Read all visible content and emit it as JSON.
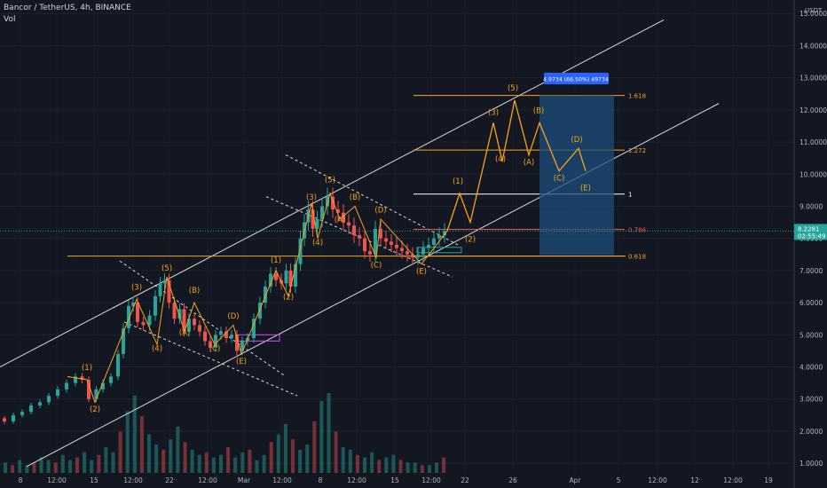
{
  "header": {
    "symbol_line": "Bancor / TetherUS, 4h, BINANCE",
    "volume_label": "Vol"
  },
  "currency": "USDT",
  "colors": {
    "background": "#131722",
    "up": "#26a69a",
    "down": "#ef5350",
    "wave": "#f7a21b",
    "channel": "#d9d9d9",
    "box_fill": "#1e4e7c",
    "box_label": "#2962ff",
    "price_tag": "#26a69a"
  },
  "chart_data": {
    "type": "candlestick",
    "y_axis": {
      "min": 0.7,
      "max": 15.2,
      "ticks": [
        1.0,
        2.0,
        3.0,
        4.0,
        5.0,
        6.0,
        7.0,
        8.0,
        9.0,
        10.0,
        11.0,
        12.0,
        13.0,
        14.0,
        15.0
      ],
      "tick_labels": [
        "1.0000",
        "2.0000",
        "3.0000",
        "4.0000",
        "5.0000",
        "6.0000",
        "7.0000",
        "8.0000",
        "9.0000",
        "10.0000",
        "11.0000",
        "12.0000",
        "13.0000",
        "14.0000",
        "15.0000"
      ]
    },
    "x_axis": {
      "labels": [
        "8",
        "12:00",
        "15",
        "12:00",
        "22",
        "12:00",
        "Mar",
        "12:00",
        "8",
        "12:00",
        "15",
        "12:00",
        "22",
        "26",
        "Apr",
        "5",
        "12:00",
        "12",
        "12:00",
        "19"
      ]
    },
    "current_price": {
      "value": 8.2281,
      "label": "8.2281",
      "countdown": "02:55:49"
    },
    "price_path": [
      [
        0,
        2.4
      ],
      [
        10,
        2.3
      ],
      [
        20,
        2.5
      ],
      [
        30,
        2.6
      ],
      [
        40,
        2.8
      ],
      [
        50,
        2.9
      ],
      [
        60,
        3.1
      ],
      [
        70,
        3.3
      ],
      [
        80,
        3.5
      ],
      [
        90,
        3.7
      ],
      [
        95,
        3.6
      ],
      [
        105,
        3.0
      ],
      [
        112,
        3.3
      ],
      [
        120,
        3.5
      ],
      [
        130,
        3.7
      ],
      [
        136,
        4.4
      ],
      [
        142,
        5.2
      ],
      [
        148,
        5.9
      ],
      [
        152,
        6.0
      ],
      [
        158,
        5.4
      ],
      [
        165,
        5.3
      ],
      [
        172,
        5.6
      ],
      [
        178,
        6.2
      ],
      [
        183,
        6.6
      ],
      [
        188,
        6.7
      ],
      [
        193,
        6.0
      ],
      [
        200,
        5.5
      ],
      [
        205,
        5.8
      ],
      [
        210,
        5.1
      ],
      [
        216,
        5.5
      ],
      [
        222,
        5.3
      ],
      [
        228,
        5.1
      ],
      [
        234,
        4.8
      ],
      [
        240,
        4.6
      ],
      [
        246,
        5.0
      ],
      [
        252,
        5.1
      ],
      [
        258,
        4.9
      ],
      [
        264,
        5.0
      ],
      [
        270,
        4.5
      ],
      [
        276,
        4.8
      ],
      [
        282,
        4.9
      ],
      [
        290,
        5.5
      ],
      [
        296,
        6.0
      ],
      [
        302,
        6.5
      ],
      [
        308,
        6.9
      ],
      [
        314,
        6.7
      ],
      [
        320,
        6.6
      ],
      [
        325,
        7.0
      ],
      [
        330,
        6.5
      ],
      [
        336,
        7.2
      ],
      [
        341,
        8.0
      ],
      [
        345,
        8.5
      ],
      [
        350,
        8.9
      ],
      [
        355,
        8.3
      ],
      [
        360,
        8.6
      ],
      [
        366,
        9.0
      ],
      [
        372,
        9.3
      ],
      [
        378,
        8.9
      ],
      [
        384,
        8.8
      ],
      [
        390,
        8.5
      ],
      [
        396,
        8.4
      ],
      [
        402,
        8.1
      ],
      [
        408,
        8.0
      ],
      [
        414,
        7.6
      ],
      [
        420,
        7.5
      ],
      [
        426,
        8.3
      ],
      [
        432,
        8.0
      ],
      [
        438,
        7.9
      ],
      [
        444,
        7.8
      ],
      [
        450,
        7.7
      ],
      [
        456,
        7.6
      ],
      [
        462,
        7.5
      ],
      [
        468,
        7.4
      ],
      [
        474,
        7.5
      ],
      [
        480,
        7.7
      ],
      [
        486,
        7.8
      ],
      [
        492,
        8.0
      ],
      [
        498,
        8.1
      ],
      [
        504,
        8.23
      ]
    ],
    "volumes": [
      0.4,
      0.3,
      0.5,
      0.3,
      0.4,
      0.6,
      0.5,
      0.4,
      0.7,
      0.5,
      0.6,
      0.8,
      0.5,
      0.7,
      1.0,
      0.8,
      1.6,
      2.4,
      3.0,
      2.2,
      1.5,
      1.1,
      0.9,
      1.3,
      1.8,
      1.2,
      0.9,
      0.7,
      0.8,
      0.6,
      0.7,
      1.0,
      0.6,
      0.8,
      0.9,
      0.5,
      0.7,
      1.2,
      1.5,
      1.9,
      1.3,
      0.9,
      1.1,
      2.0,
      2.8,
      3.1,
      1.6,
      1.0,
      0.9,
      0.7,
      0.6,
      0.8,
      0.5,
      0.6,
      0.7,
      0.5,
      0.4,
      0.4,
      0.3,
      0.3,
      0.4,
      0.6
    ],
    "levels": [
      {
        "label": "1.618",
        "value": 12.45
      },
      {
        "label": "1.272",
        "value": 10.75
      },
      {
        "label": "1",
        "value": 9.38
      },
      {
        "label": "0.786",
        "value": 8.28
      },
      {
        "label": "0.618",
        "value": 7.45
      }
    ],
    "target_box": {
      "label": "4.9734 (66.50%) 49734",
      "top": 12.45,
      "bottom": 7.48
    },
    "forecast_path": [
      [
        504,
        8.23
      ],
      [
        518,
        9.4
      ],
      [
        530,
        8.5
      ],
      [
        556,
        11.6
      ],
      [
        566,
        10.4
      ],
      [
        580,
        12.3
      ],
      [
        596,
        10.6
      ],
      [
        608,
        11.6
      ],
      [
        630,
        10.1
      ],
      [
        652,
        10.8
      ],
      [
        660,
        10.1
      ]
    ],
    "wave_labels": [
      {
        "text": "(1)",
        "x": 98,
        "y": 3.9
      },
      {
        "text": "(2)",
        "x": 107,
        "y": 2.6
      },
      {
        "text": "(3)",
        "x": 154,
        "y": 6.4
      },
      {
        "text": "(4)",
        "x": 177,
        "y": 4.5
      },
      {
        "text": "(5)",
        "x": 188,
        "y": 7.0
      },
      {
        "text": "(A)",
        "x": 208,
        "y": 5.0
      },
      {
        "text": "(B)",
        "x": 219,
        "y": 6.3
      },
      {
        "text": "(C)",
        "x": 242,
        "y": 4.5
      },
      {
        "text": "(D)",
        "x": 263,
        "y": 5.5
      },
      {
        "text": "(E)",
        "x": 272,
        "y": 4.1
      },
      {
        "text": "(1)",
        "x": 311,
        "y": 7.25
      },
      {
        "text": "(2)",
        "x": 325,
        "y": 6.1
      },
      {
        "text": "(3)",
        "x": 351,
        "y": 9.2
      },
      {
        "text": "(4)",
        "x": 358,
        "y": 7.8
      },
      {
        "text": "(5)",
        "x": 372,
        "y": 9.75
      },
      {
        "text": "(A)",
        "x": 383,
        "y": 8.5
      },
      {
        "text": "(B)",
        "x": 400,
        "y": 9.2
      },
      {
        "text": "(C)",
        "x": 424,
        "y": 7.1
      },
      {
        "text": "(D)",
        "x": 429,
        "y": 8.8
      },
      {
        "text": "(E)",
        "x": 475,
        "y": 6.9
      },
      {
        "text": "(1)",
        "x": 516,
        "y": 9.7
      },
      {
        "text": "(2)",
        "x": 530,
        "y": 7.9
      },
      {
        "text": "(3)",
        "x": 556,
        "y": 11.85
      },
      {
        "text": "(4)",
        "x": 564,
        "y": 10.4
      },
      {
        "text": "(5)",
        "x": 578,
        "y": 12.6
      },
      {
        "text": "(A)",
        "x": 596,
        "y": 10.3
      },
      {
        "text": "(B)",
        "x": 607,
        "y": 11.9
      },
      {
        "text": "(C)",
        "x": 630,
        "y": 9.8
      },
      {
        "text": "(D)",
        "x": 650,
        "y": 11.0
      },
      {
        "text": "(E)",
        "x": 660,
        "y": 9.5
      }
    ]
  }
}
